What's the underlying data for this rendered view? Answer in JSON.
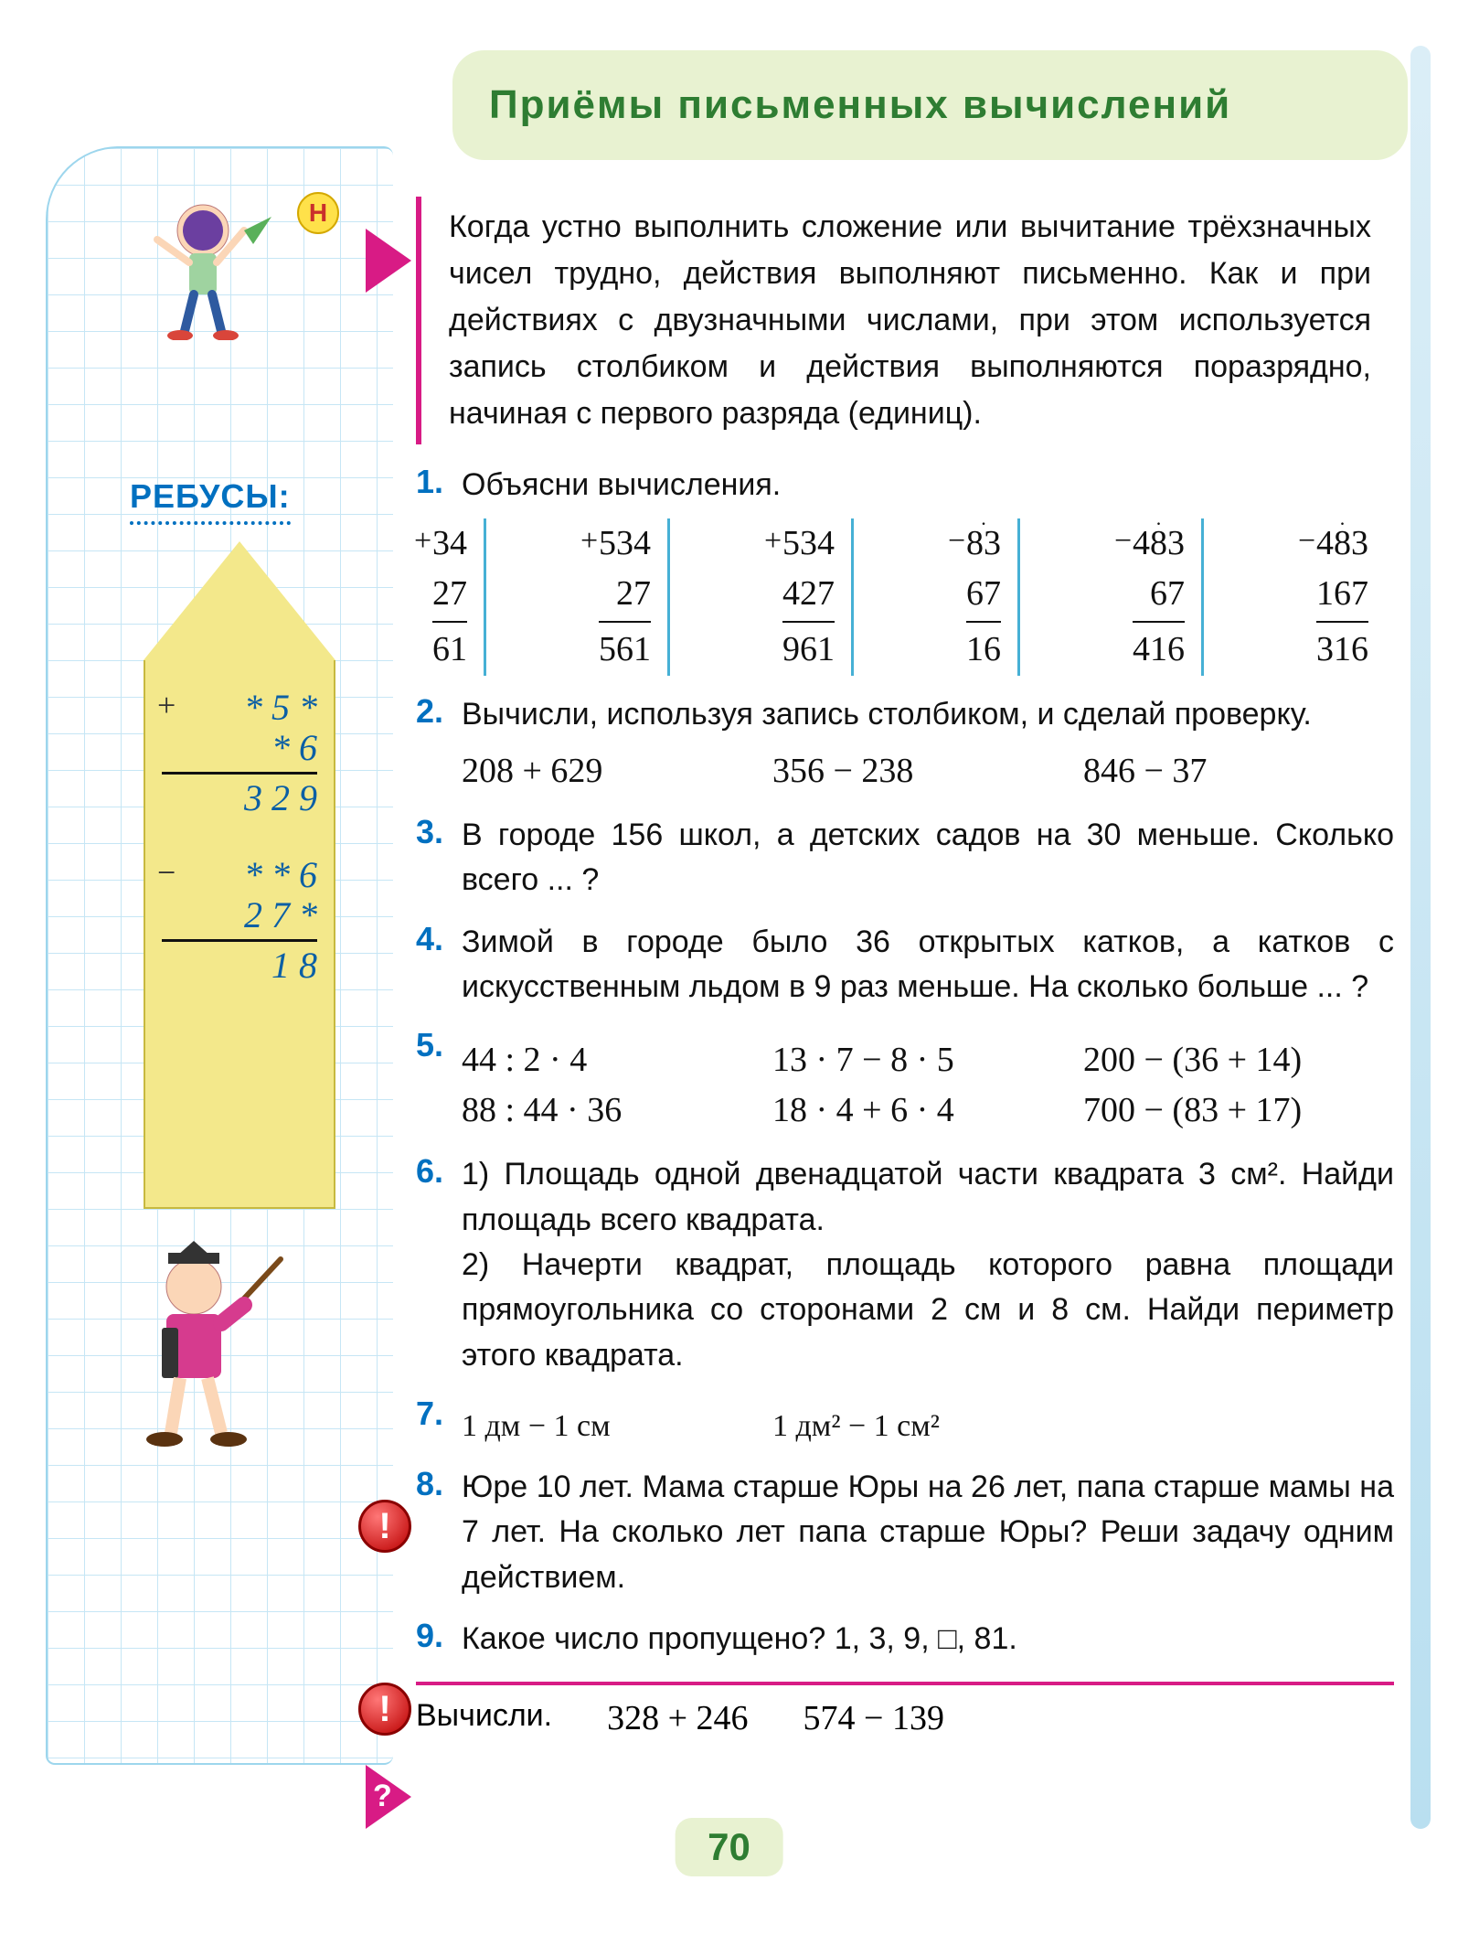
{
  "page_number": "70",
  "header": {
    "title": "Приёмы  письменных  вычислений"
  },
  "sidebar": {
    "badge_letter": "Н",
    "rebus_title": "РЕБУСЫ:",
    "rebus1": {
      "op": "+",
      "line1": "* 5 *",
      "line2": "* 6",
      "result": "3 2 9"
    },
    "rebus2": {
      "op": "−",
      "line1": "* * 6",
      "line2": "2 7 *",
      "result": "1 8"
    }
  },
  "intro": "Когда устно выполнить сложение или вычитание трёхзначных чисел трудно, действия выполняют письменно. Как и при действиях с двузначными числами, при этом используется запись столбиком и действия выполняются поразрядно, начиная с первого разряда (единиц).",
  "tasks": {
    "t1": {
      "num": "1.",
      "text": "Объясни вычисления.",
      "cols": [
        {
          "op": "+",
          "a": "34",
          "b": "27",
          "r": "61",
          "dot": false
        },
        {
          "op": "+",
          "a": "534",
          "b": "27",
          "r": "561",
          "dot": false
        },
        {
          "op": "+",
          "a": "534",
          "b": "427",
          "r": "961",
          "dot": false
        },
        {
          "op": "−",
          "a": "83",
          "b": "67",
          "r": "16",
          "dot": true
        },
        {
          "op": "−",
          "a": "483",
          "b": "67",
          "r": "416",
          "dot": true
        },
        {
          "op": "−",
          "a": "483",
          "b": "167",
          "r": "316",
          "dot": true
        }
      ]
    },
    "t2": {
      "num": "2.",
      "text": "Вычисли, используя запись столбиком, и сделай проверку.",
      "items": [
        "208 + 629",
        "356 − 238",
        "846 − 37"
      ]
    },
    "t3": {
      "num": "3.",
      "text": "В городе 156 школ, а детских садов на 30 меньше. Сколько всего ... ?"
    },
    "t4": {
      "num": "4.",
      "text": "Зимой в городе было 36 открытых катков, а катков с искусственным льдом в 9 раз меньше. На сколько больше ... ?"
    },
    "t5": {
      "num": "5.",
      "rows": [
        [
          "44 : 2 · 4",
          "13 · 7 − 8 · 5",
          "200 − (36 + 14)"
        ],
        [
          "88 : 44 · 36",
          "18 · 4 + 6 · 4",
          "700 − (83 + 17)"
        ]
      ]
    },
    "t6": {
      "num": "6.",
      "p1": "1) Площадь одной двенадцатой части квадрата 3 см². Найди площадь всего квадрата.",
      "p2": "2) Начерти квадрат, площадь которого равна площади прямоугольника со сторонами 2 см и 8 см. Найди периметр этого квадрата."
    },
    "t7": {
      "num": "7.",
      "a": "1 дм − 1 см",
      "b": "1 дм² − 1 см²"
    },
    "t8": {
      "num": "8.",
      "text": "Юре 10 лет. Мама старше Юры на 26 лет, папа старше мамы на 7 лет. На сколько лет папа старше Юры? Реши задачу одним действием."
    },
    "t9": {
      "num": "9.",
      "text": "Какое число пропущено? 1, 3, 9, □, 81."
    }
  },
  "footer": {
    "label": "Вычисли.",
    "a": "328 + 246",
    "b": "574 − 139"
  },
  "colors": {
    "header_bg": "#e8f2d1",
    "header_text": "#2e7d32",
    "accent_blue": "#0070c0",
    "accent_pink": "#d81b85",
    "grid": "#c6e6f5",
    "house": "#f3e88b"
  }
}
